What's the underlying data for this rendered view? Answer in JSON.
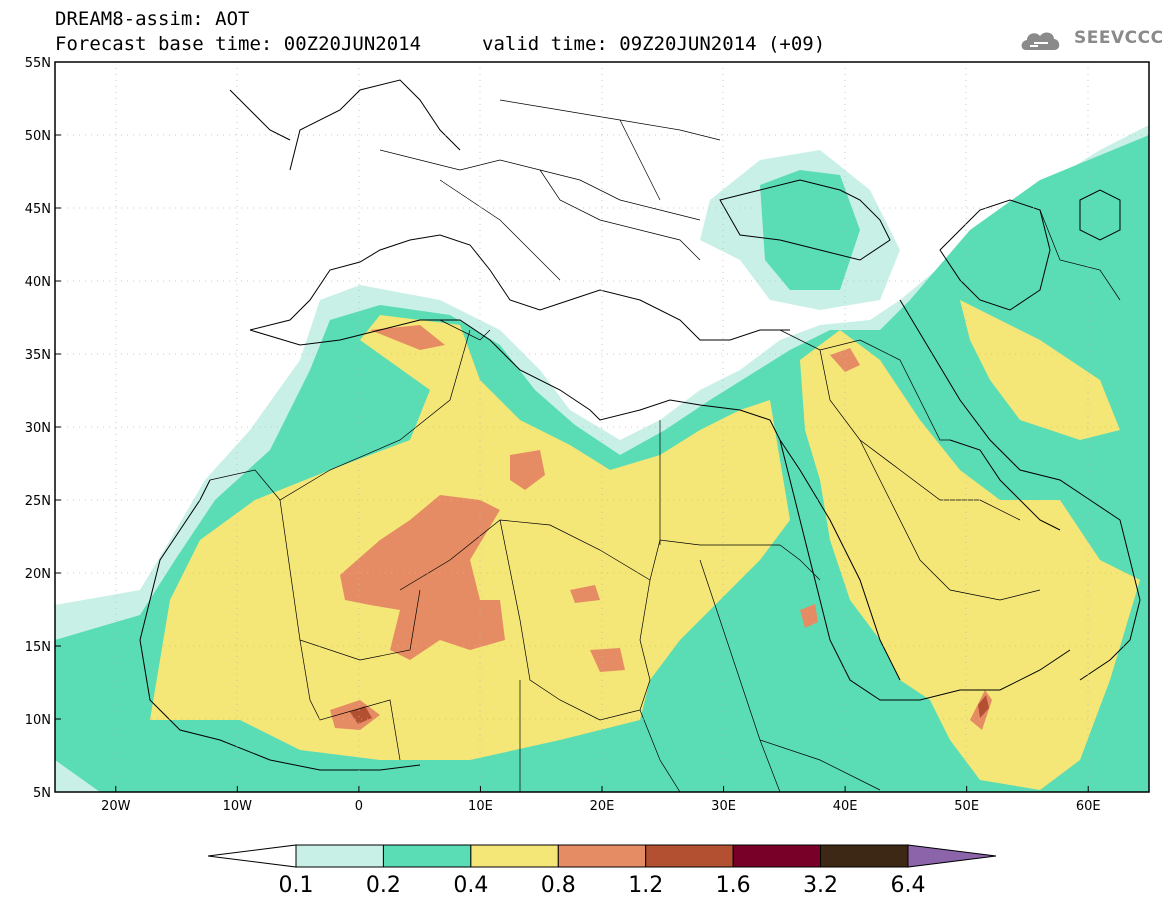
{
  "header": {
    "line1": "DREAM8-assim: AOT",
    "line2_base": "Forecast base time: 00Z20JUN2014",
    "line2_valid": "valid time: 09Z20JUN2014 (+09)",
    "logo_text": "SEEVCCC"
  },
  "map": {
    "lon_range": [
      -25,
      65
    ],
    "lat_range": [
      5,
      55
    ],
    "lat_ticks": [
      "55N",
      "50N",
      "45N",
      "40N",
      "35N",
      "30N",
      "25N",
      "20N",
      "15N",
      "10N",
      "5N"
    ],
    "lon_ticks": [
      "20W",
      "10W",
      "0",
      "10E",
      "20E",
      "30E",
      "40E",
      "50E",
      "60E"
    ],
    "colors": {
      "c01": "#c8f0e6",
      "c02": "#5adcb4",
      "c04": "#f5e678",
      "c08": "#e68c64",
      "c12": "#b45032",
      "c16": "#780028",
      "c32": "#3c2814",
      "c64": "#8c64aa"
    }
  },
  "colorbar": {
    "labels": [
      "0.1",
      "0.2",
      "0.4",
      "0.8",
      "1.2",
      "1.6",
      "3.2",
      "6.4"
    ],
    "colors": [
      "#ffffff",
      "#c8f0e6",
      "#5adcb4",
      "#f5e678",
      "#e68c64",
      "#b45032",
      "#780028",
      "#3c2814",
      "#8c64aa"
    ]
  }
}
